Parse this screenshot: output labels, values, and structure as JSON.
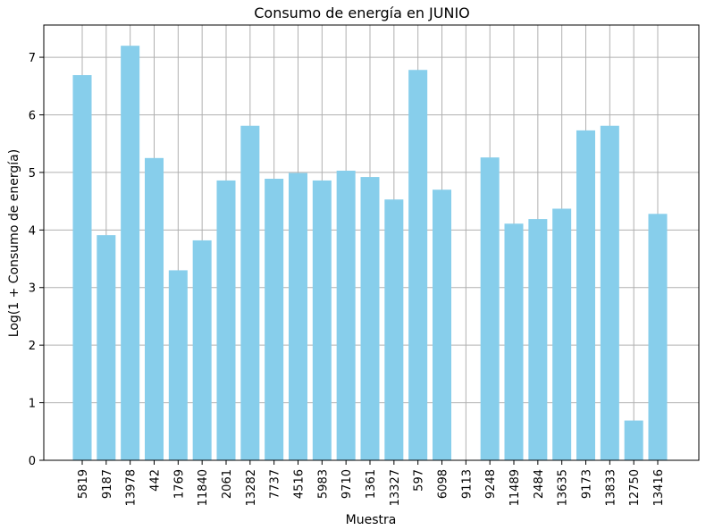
{
  "chart_data": {
    "type": "bar",
    "title": "Consumo de energía en JUNIO",
    "xlabel": "Muestra",
    "ylabel": "Log(1 + Consumo de energía)",
    "categories": [
      "5819",
      "9187",
      "13978",
      "442",
      "1769",
      "11840",
      "2061",
      "13282",
      "7737",
      "4516",
      "5983",
      "9710",
      "1361",
      "13327",
      "597",
      "6098",
      "9113",
      "9248",
      "11489",
      "2484",
      "13635",
      "9173",
      "13833",
      "12750",
      "13416"
    ],
    "values": [
      6.69,
      3.91,
      7.2,
      5.25,
      3.3,
      3.82,
      4.86,
      5.81,
      4.89,
      4.99,
      4.86,
      5.03,
      4.92,
      4.53,
      6.78,
      4.7,
      0.0,
      5.26,
      4.11,
      4.19,
      4.37,
      5.73,
      5.81,
      0.69,
      4.28
    ],
    "ylim": [
      0,
      7.56
    ],
    "yticks": [
      0,
      1,
      2,
      3,
      4,
      5,
      6,
      7
    ],
    "grid": true,
    "bar_color": "#87ceeb",
    "grid_color": "#b0b0b0"
  }
}
